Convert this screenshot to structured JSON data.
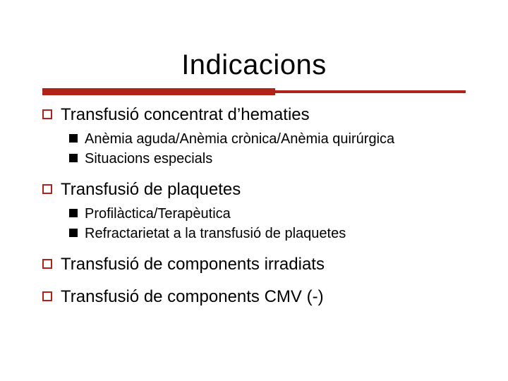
{
  "colors": {
    "accent": "#b02318",
    "bullet_border": "#b02318",
    "bullet_fill": "#000000",
    "text": "#000000",
    "background": "#ffffff"
  },
  "typography": {
    "title_fontsize_pt": 30,
    "l1_fontsize_pt": 18,
    "l2_fontsize_pt": 15,
    "font_family": "Verdana"
  },
  "title": "Indicacions",
  "items": [
    {
      "label": "Transfusió concentrat d’hematies",
      "sub": [
        "Anèmia aguda/Anèmia crònica/Anèmia quirúrgica",
        "Situacions especials"
      ]
    },
    {
      "label": "Transfusió de plaquetes",
      "sub": [
        "Profilàctica/Terapèutica",
        "Refractarietat a la transfusió de plaquetes"
      ]
    },
    {
      "label": "Transfusió de components irradiats",
      "sub": []
    },
    {
      "label": "Transfusió de components CMV (-)",
      "sub": []
    }
  ]
}
